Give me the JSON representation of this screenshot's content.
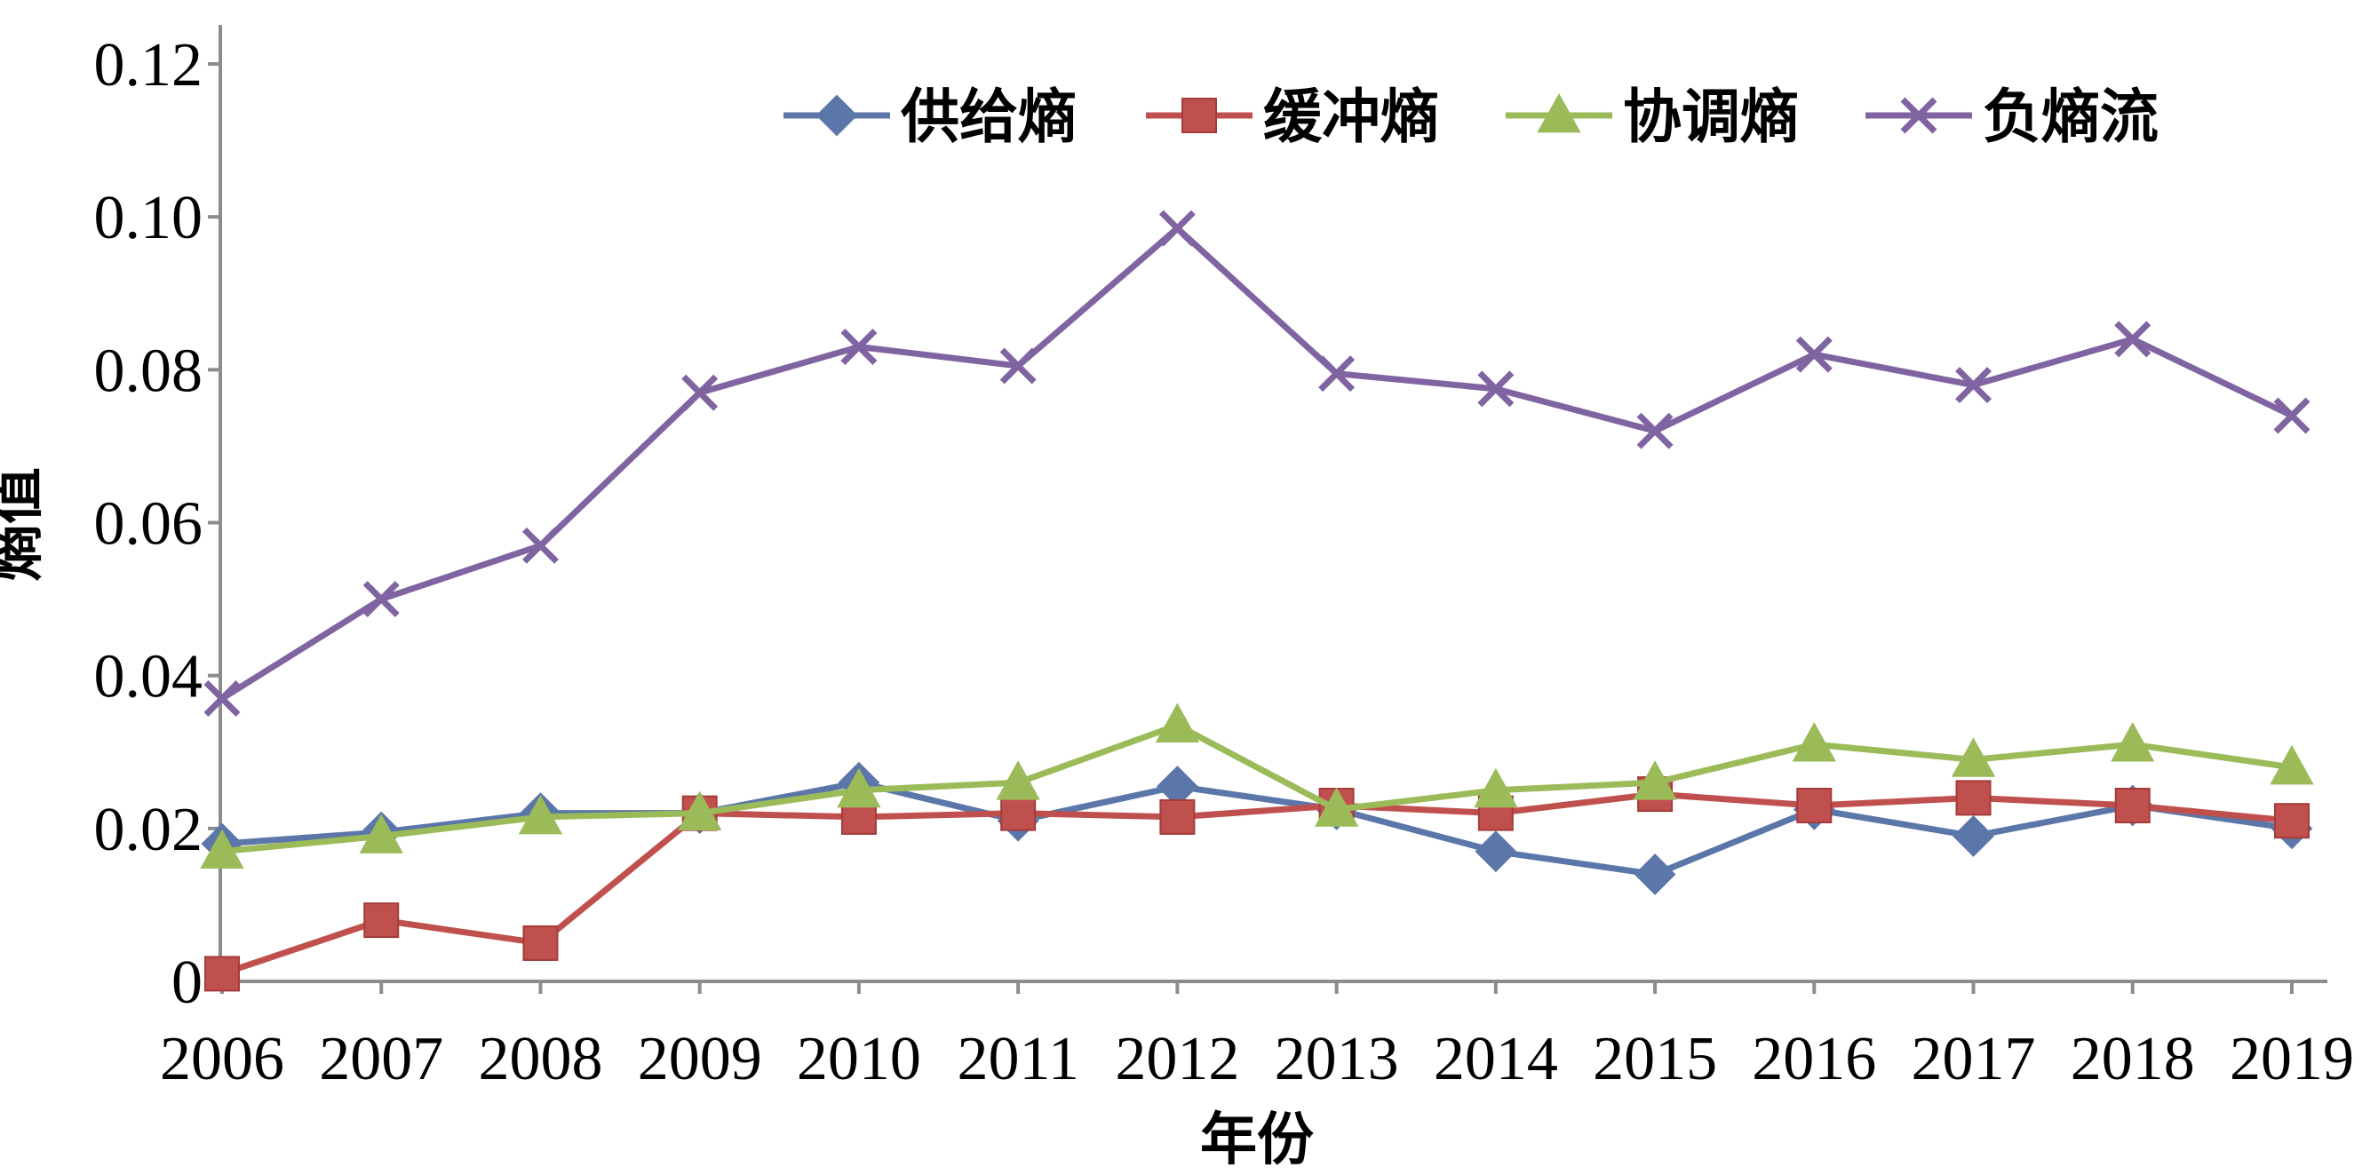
{
  "chart_data": {
    "type": "line",
    "x": [
      "2006",
      "2007",
      "2008",
      "2009",
      "2010",
      "2011",
      "2012",
      "2013",
      "2014",
      "2015",
      "2016",
      "2017",
      "2018",
      "2019"
    ],
    "ylabel": "熵值",
    "xlabel": "年份",
    "ylim": [
      0,
      0.12
    ],
    "y_ticks": [
      0,
      0.02,
      0.04,
      0.06,
      0.08,
      0.1,
      0.12
    ],
    "y_tick_labels": [
      "0",
      "0.02",
      "0.04",
      "0.06",
      "0.08",
      "0.10",
      "0.12"
    ],
    "grid": false,
    "legend_position": "top",
    "series": [
      {
        "name": "供给熵",
        "color": "#5B76A8",
        "marker": "diamond",
        "values": [
          0.018,
          0.0195,
          0.022,
          0.022,
          0.026,
          0.021,
          0.0255,
          0.0225,
          0.017,
          0.014,
          0.0225,
          0.019,
          0.023,
          0.02
        ]
      },
      {
        "name": "缓冲熵",
        "color": "#C0504D",
        "marker": "square",
        "values": [
          0.001,
          0.008,
          0.005,
          0.022,
          0.0215,
          0.022,
          0.0215,
          0.023,
          0.022,
          0.0245,
          0.023,
          0.024,
          0.023,
          0.021
        ]
      },
      {
        "name": "协调熵",
        "color": "#9BBB59",
        "marker": "triangle",
        "values": [
          0.017,
          0.019,
          0.0215,
          0.022,
          0.025,
          0.026,
          0.0335,
          0.0225,
          0.025,
          0.026,
          0.031,
          0.029,
          0.031,
          0.028
        ]
      },
      {
        "name": "负熵流",
        "color": "#8064A2",
        "marker": "cross",
        "values": [
          0.037,
          0.05,
          0.057,
          0.077,
          0.083,
          0.0805,
          0.0985,
          0.0795,
          0.0775,
          0.072,
          0.082,
          0.078,
          0.084,
          0.074
        ]
      }
    ]
  }
}
